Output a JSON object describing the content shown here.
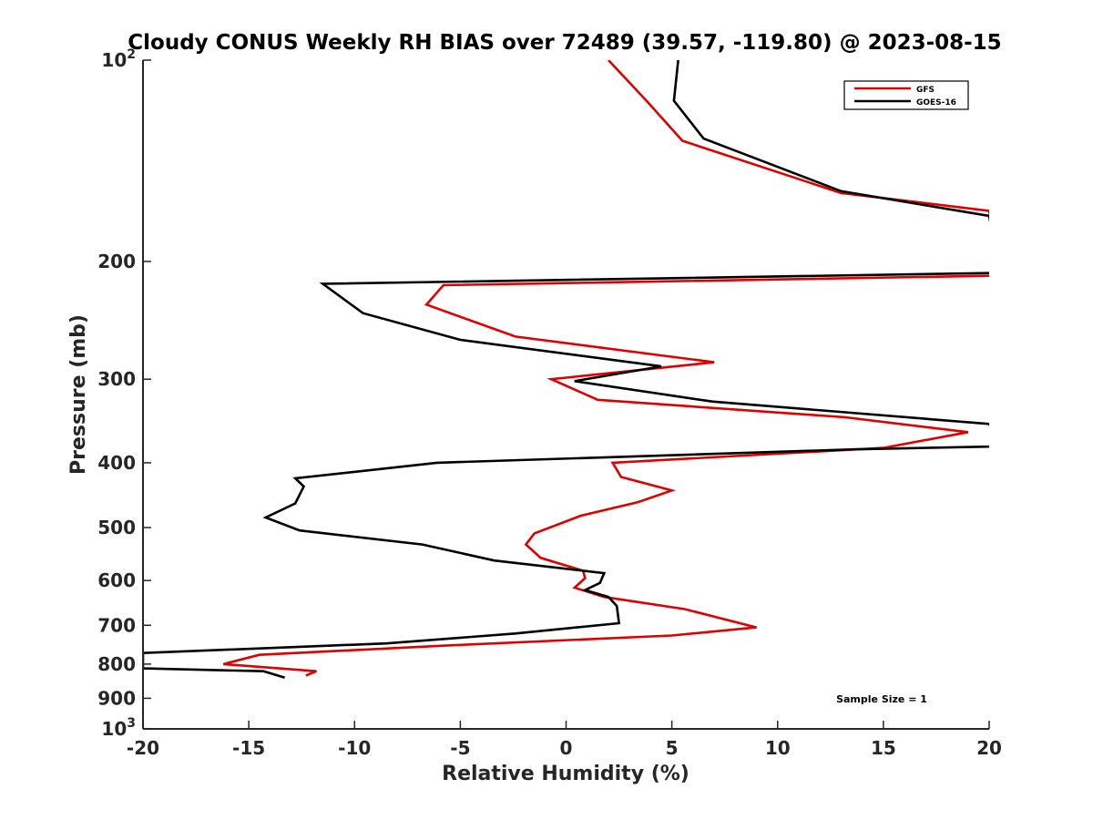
{
  "chart_data": {
    "type": "line",
    "title": "Cloudy CONUS Weekly RH BIAS over 72489 (39.57, -119.80) @ 2023-08-15",
    "xlabel": "Relative Humidity (%)",
    "ylabel": "Pressure (mb)",
    "xlim": [
      -20,
      20
    ],
    "ylim": [
      100,
      1000
    ],
    "yscale": "log",
    "y_reversed": true,
    "grid": false,
    "legend_placement": "top-right",
    "x_ticks": [
      {
        "value": -20,
        "label": "-20"
      },
      {
        "value": -15,
        "label": "-15"
      },
      {
        "value": -10,
        "label": "-10"
      },
      {
        "value": -5,
        "label": "-5"
      },
      {
        "value": 0,
        "label": "0"
      },
      {
        "value": 5,
        "label": "5"
      },
      {
        "value": 10,
        "label": "10"
      },
      {
        "value": 15,
        "label": "15"
      },
      {
        "value": 20,
        "label": "20"
      }
    ],
    "y_ticks": [
      {
        "value": 100,
        "label": "10",
        "sup": "2"
      },
      {
        "value": 200,
        "label": "200"
      },
      {
        "value": 300,
        "label": "300"
      },
      {
        "value": 400,
        "label": "400"
      },
      {
        "value": 500,
        "label": "500"
      },
      {
        "value": 600,
        "label": "600"
      },
      {
        "value": 700,
        "label": "700"
      },
      {
        "value": 800,
        "label": "800"
      },
      {
        "value": 900,
        "label": "900"
      },
      {
        "value": 1000,
        "label": "10",
        "sup": "3"
      }
    ],
    "series": [
      {
        "name": "GFS",
        "color": "#e00000",
        "points": [
          [
            2.0,
            100
          ],
          [
            3.8,
            115
          ],
          [
            5.5,
            132
          ],
          [
            13.0,
            158
          ],
          [
            20.0,
            168
          ],
          [
            20.5,
            210
          ],
          [
            -5.8,
            217
          ],
          [
            -6.6,
            232
          ],
          [
            -2.4,
            259
          ],
          [
            7.0,
            283
          ],
          [
            -0.7,
            300
          ],
          [
            1.5,
            322
          ],
          [
            13.2,
            342
          ],
          [
            19.0,
            360
          ],
          [
            15.0,
            380
          ],
          [
            2.2,
            400
          ],
          [
            2.6,
            420
          ],
          [
            5.0,
            440
          ],
          [
            3.4,
            458
          ],
          [
            0.7,
            480
          ],
          [
            -1.5,
            510
          ],
          [
            -1.9,
            530
          ],
          [
            -1.2,
            555
          ],
          [
            0.8,
            580
          ],
          [
            0.9,
            595
          ],
          [
            0.4,
            615
          ],
          [
            1.8,
            635
          ],
          [
            5.6,
            662
          ],
          [
            9.0,
            705
          ],
          [
            5.0,
            725
          ],
          [
            -5.5,
            750
          ],
          [
            -14.5,
            775
          ],
          [
            -16.2,
            800
          ],
          [
            -11.8,
            820
          ],
          [
            -12.3,
            832
          ]
        ]
      },
      {
        "name": "GOES-16",
        "color": "#000000",
        "points": [
          [
            5.3,
            100
          ],
          [
            5.1,
            115
          ],
          [
            6.5,
            131
          ],
          [
            13.0,
            157
          ],
          [
            20.0,
            171
          ],
          [
            20.5,
            208
          ],
          [
            -11.5,
            216
          ],
          [
            -9.6,
            239
          ],
          [
            -5.0,
            262
          ],
          [
            4.5,
            287
          ],
          [
            0.4,
            302
          ],
          [
            6.9,
            324
          ],
          [
            20.0,
            350
          ],
          [
            20.5,
            378
          ],
          [
            13.6,
            382
          ],
          [
            -6.1,
            400
          ],
          [
            -12.8,
            422
          ],
          [
            -12.4,
            434
          ],
          [
            -12.8,
            460
          ],
          [
            -14.2,
            483
          ],
          [
            -12.6,
            505
          ],
          [
            -6.8,
            530
          ],
          [
            -3.4,
            560
          ],
          [
            1.8,
            585
          ],
          [
            1.6,
            605
          ],
          [
            0.9,
            620
          ],
          [
            2.0,
            635
          ],
          [
            2.4,
            655
          ],
          [
            2.5,
            695
          ],
          [
            -2.4,
            720
          ],
          [
            -8.5,
            745
          ],
          [
            -20.0,
            770
          ],
          [
            -20.0,
            812
          ],
          [
            -14.3,
            820
          ],
          [
            -13.3,
            838
          ]
        ]
      }
    ],
    "annotations": [
      {
        "text": "Sample Size = 1"
      }
    ]
  }
}
